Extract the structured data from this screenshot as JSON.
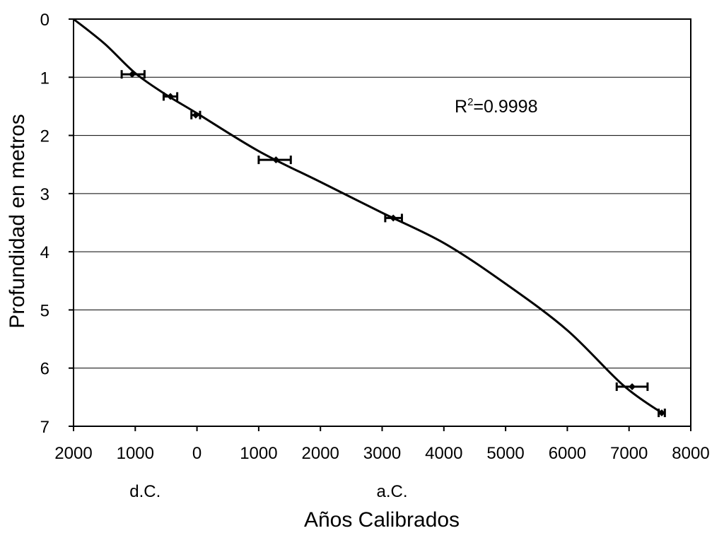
{
  "chart_data": {
    "type": "scatter",
    "xlabel": "Años Calibrados",
    "ylabel": "Profundidad en metros",
    "xlim": [
      -2000,
      8000
    ],
    "ylim": [
      0,
      7
    ],
    "y_inverted": true,
    "grid": "horizontal",
    "x_ticks": [
      -2000,
      -1000,
      0,
      1000,
      2000,
      3000,
      4000,
      5000,
      6000,
      7000,
      8000
    ],
    "x_tick_labels": [
      "2000",
      "1000",
      "0",
      "1000",
      "2000",
      "3000",
      "4000",
      "5000",
      "6000",
      "7000",
      "8000"
    ],
    "y_ticks": [
      0,
      1,
      2,
      3,
      4,
      5,
      6,
      7
    ],
    "y_tick_labels": [
      "0",
      "1",
      "2",
      "3",
      "4",
      "5",
      "6",
      "7"
    ],
    "era_labels": [
      {
        "text": "d.C.",
        "x": -1000
      },
      {
        "text": "a.C.",
        "x": 3000
      }
    ],
    "annotation": {
      "base": "R",
      "sup": "2",
      "rest": "=0.9998"
    },
    "points": [
      {
        "x": -1050,
        "y": 0.95,
        "xmin": -1220,
        "xmax": -850
      },
      {
        "x": -430,
        "y": 1.33,
        "xmin": -540,
        "xmax": -320
      },
      {
        "x": -20,
        "y": 1.65,
        "xmin": -90,
        "xmax": 50
      },
      {
        "x": 1280,
        "y": 2.42,
        "xmin": 1000,
        "xmax": 1520
      },
      {
        "x": 3180,
        "y": 3.42,
        "xmin": 3050,
        "xmax": 3320
      },
      {
        "x": 7050,
        "y": 6.32,
        "xmin": 6800,
        "xmax": 7300
      },
      {
        "x": 7530,
        "y": 6.77,
        "xmin": 7480,
        "xmax": 7580
      }
    ],
    "fit_curve": [
      [
        -2000,
        0.0
      ],
      [
        -1500,
        0.42
      ],
      [
        -1000,
        0.93
      ],
      [
        -500,
        1.3
      ],
      [
        0,
        1.62
      ],
      [
        1000,
        2.27
      ],
      [
        2000,
        2.8
      ],
      [
        3000,
        3.33
      ],
      [
        4000,
        3.85
      ],
      [
        5000,
        4.55
      ],
      [
        6000,
        5.35
      ],
      [
        6900,
        6.29
      ],
      [
        7530,
        6.77
      ]
    ],
    "colors": {
      "line": "#000000",
      "grid": "#000000",
      "background": "#ffffff"
    }
  }
}
